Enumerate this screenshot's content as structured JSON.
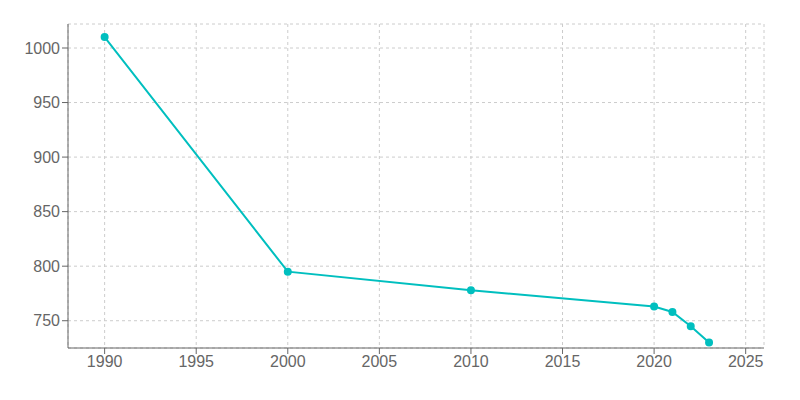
{
  "chart_data": {
    "type": "line",
    "x": [
      1990,
      2000,
      2010,
      2020,
      2021,
      2022,
      2023
    ],
    "values": [
      1010,
      795,
      778,
      763,
      758,
      745,
      730
    ],
    "color": "#00BFBF",
    "marker": "circle",
    "xlim": [
      1988,
      2026
    ],
    "ylim": [
      725,
      1022
    ],
    "xticks": [
      1990,
      1995,
      2000,
      2005,
      2010,
      2015,
      2020,
      2025
    ],
    "yticks": [
      750,
      800,
      850,
      900,
      950,
      1000
    ],
    "grid": true
  }
}
